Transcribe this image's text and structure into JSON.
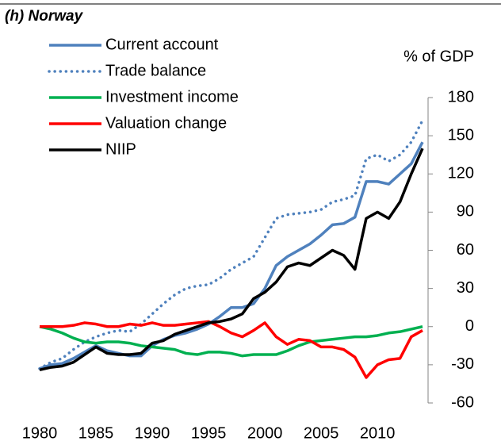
{
  "chart_data": {
    "type": "line",
    "title": "(h) Norway",
    "y_axis_label": "% of GDP",
    "y_axis_side": "right",
    "x": [
      1980,
      1981,
      1982,
      1983,
      1984,
      1985,
      1986,
      1987,
      1988,
      1989,
      1990,
      1991,
      1992,
      1993,
      1994,
      1995,
      1996,
      1997,
      1998,
      1999,
      2000,
      2001,
      2002,
      2003,
      2004,
      2005,
      2006,
      2007,
      2008,
      2009,
      2010,
      2011,
      2012,
      2013,
      2014
    ],
    "xlim": [
      1980,
      2014
    ],
    "xticks": [
      1980,
      1985,
      1990,
      1995,
      2000,
      2005,
      2010
    ],
    "ylim": [
      -60,
      180
    ],
    "yticks": [
      -60,
      -30,
      0,
      30,
      60,
      90,
      120,
      150,
      180
    ],
    "legend": "top-left",
    "series": [
      {
        "name": "Current account",
        "color": "#4f81bd",
        "style": "solid",
        "values": [
          -33,
          -30,
          -29,
          -25,
          -20,
          -15,
          -19,
          -21,
          -23,
          -23,
          -15,
          -10,
          -7,
          -5,
          -2,
          2,
          8,
          15,
          15,
          18,
          30,
          48,
          55,
          60,
          65,
          72,
          80,
          81,
          86,
          114,
          114,
          112,
          120,
          128,
          145
        ]
      },
      {
        "name": "Trade balance",
        "color": "#4f81bd",
        "style": "dotted",
        "values": [
          -33,
          -28,
          -25,
          -18,
          -12,
          -8,
          -5,
          -3,
          -4,
          2,
          10,
          18,
          25,
          30,
          32,
          33,
          38,
          45,
          50,
          55,
          70,
          85,
          88,
          89,
          90,
          92,
          98,
          100,
          103,
          132,
          135,
          130,
          135,
          145,
          162
        ]
      },
      {
        "name": "Investment income",
        "color": "#00b050",
        "style": "solid",
        "values": [
          0,
          -2,
          -5,
          -9,
          -12,
          -13,
          -12,
          -12,
          -13,
          -15,
          -16,
          -17,
          -18,
          -21,
          -22,
          -20,
          -20,
          -21,
          -23,
          -22,
          -22,
          -22,
          -19,
          -15,
          -12,
          -11,
          -10,
          -9,
          -8,
          -8,
          -7,
          -5,
          -4,
          -2,
          0
        ]
      },
      {
        "name": "Valuation change",
        "color": "#ff0000",
        "style": "solid",
        "values": [
          0,
          0,
          0,
          1,
          3,
          2,
          0,
          0,
          2,
          1,
          3,
          1,
          1,
          2,
          3,
          4,
          0,
          -5,
          -8,
          -3,
          3,
          -8,
          -14,
          -10,
          -11,
          -16,
          -16,
          -18,
          -24,
          -40,
          -30,
          -26,
          -25,
          -8,
          -3
        ]
      },
      {
        "name": "NIIP",
        "color": "#000000",
        "style": "solid",
        "values": [
          -34,
          -32,
          -31,
          -28,
          -22,
          -16,
          -21,
          -22,
          -22,
          -21,
          -13,
          -11,
          -6,
          -3,
          0,
          3,
          4,
          6,
          10,
          22,
          27,
          35,
          47,
          50,
          48,
          54,
          60,
          56,
          45,
          85,
          90,
          85,
          98,
          120,
          140
        ]
      }
    ]
  }
}
